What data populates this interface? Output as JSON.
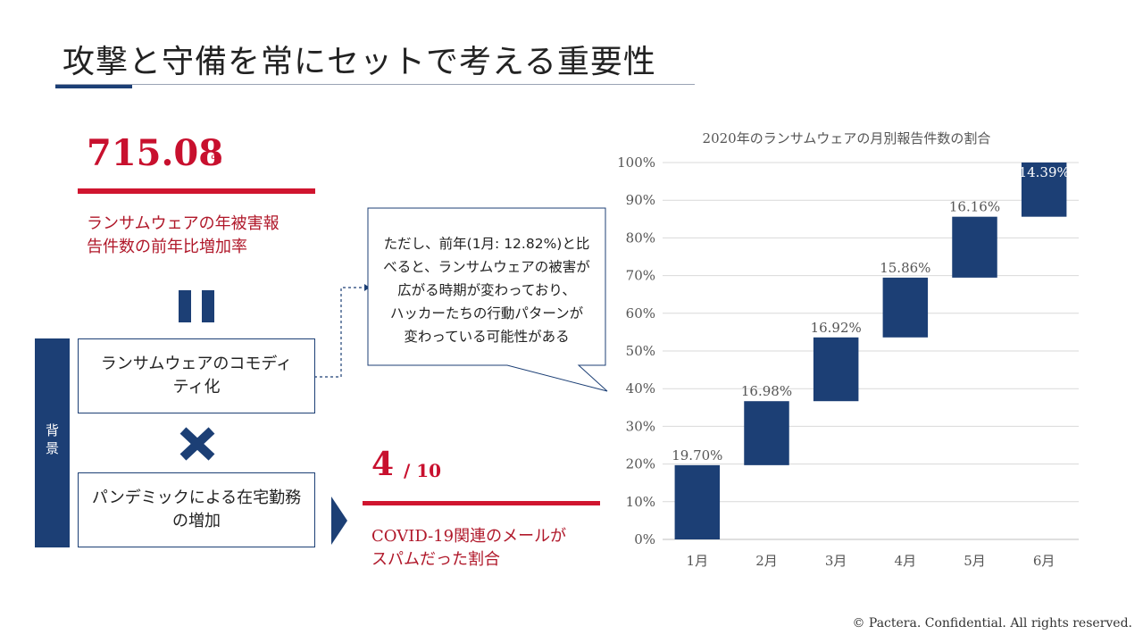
{
  "title": "攻撃と守備を常にセットで考える重要性",
  "stat1": {
    "value": "715.08",
    "unit": "%",
    "desc_line1": "ランサムウェアの年被害報",
    "desc_line2": "告件数の前年比増加率"
  },
  "background_label": {
    "line1": "背",
    "line2": "景"
  },
  "box1": {
    "line1": "ランサムウェアのコモディ",
    "line2": "ティ化"
  },
  "box2": {
    "line1": "パンデミックによる在宅勤務",
    "line2": "の増加"
  },
  "callout": {
    "line1": "ただし、前年(1月: 12.82%)と比",
    "line2": "べると、ランサムウェアの被害が",
    "line3": "広がる時期が変わっており、",
    "line4": "ハッカーたちの行動パターンが",
    "line5": "変わっている可能性がある"
  },
  "stat2": {
    "value": "4",
    "denominator": "/ 10",
    "desc_line1": "COVID-19関連のメールが",
    "desc_line2": "スパムだった割合"
  },
  "footer": "© Pactera.  Confidential.  All rights reserved.",
  "colors": {
    "navy": "#1c3f75",
    "red": "#c8102e"
  },
  "chart_data": {
    "type": "bar",
    "subtype": "waterfall",
    "title": "2020年のランサムウェアの月別報告件数の割合",
    "categories": [
      "1月",
      "2月",
      "3月",
      "4月",
      "5月",
      "6月"
    ],
    "values": [
      19.7,
      16.98,
      16.92,
      15.86,
      16.16,
      14.39
    ],
    "value_labels": [
      "19.70%",
      "16.98%",
      "16.92%",
      "15.86%",
      "16.16%",
      "14.39%"
    ],
    "y_ticks": [
      "0%",
      "10%",
      "20%",
      "30%",
      "40%",
      "50%",
      "60%",
      "70%",
      "80%",
      "90%",
      "100%"
    ],
    "ylim": [
      0,
      100
    ],
    "grid": true,
    "bar_color": "#1c3f75"
  }
}
